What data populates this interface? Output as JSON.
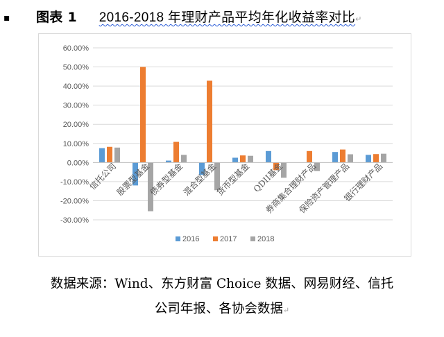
{
  "header": {
    "bullet": "▪",
    "figure_label": "图表 1",
    "title_text": "2016-2018 年理财产品平均年化收益率对比",
    "para_mark": "↵"
  },
  "source": {
    "line1": "数据来源：Wind、东方财富 Choice 数据、网易财经、信托",
    "line2": "公司年报、各协会数据",
    "para_mark": "↵"
  },
  "chart_data": {
    "type": "bar",
    "title": "",
    "xlabel": "",
    "ylabel": "",
    "categories": [
      "信托公司",
      "股票型基金",
      "债券型基金",
      "混合型基金",
      "货币型基金",
      "QDII基金",
      "券商集合理财产品",
      "保险资产管理产品",
      "银行理财产品"
    ],
    "series": [
      {
        "name": "2016",
        "color": "#5b9bd5",
        "values": [
          7.5,
          -12.0,
          1.0,
          -6.5,
          2.5,
          6.0,
          null,
          5.5,
          4.0
        ]
      },
      {
        "name": "2017",
        "color": "#ed7d31",
        "values": [
          8.2,
          50.0,
          10.8,
          42.8,
          3.7,
          -4.0,
          6.0,
          6.8,
          4.4
        ]
      },
      {
        "name": "2018",
        "color": "#a5a5a5",
        "values": [
          7.8,
          -25.5,
          4.0,
          -14.5,
          3.5,
          -8.0,
          -4.5,
          4.3,
          4.6
        ]
      }
    ],
    "y_ticks": [
      "60.00%",
      "50.00%",
      "40.00%",
      "30.00%",
      "20.00%",
      "10.00%",
      "0.00%",
      "-10.00%",
      "-20.00%",
      "-30.00%"
    ],
    "ylim": [
      -30,
      60
    ],
    "grid": true,
    "legend_position": "bottom"
  }
}
